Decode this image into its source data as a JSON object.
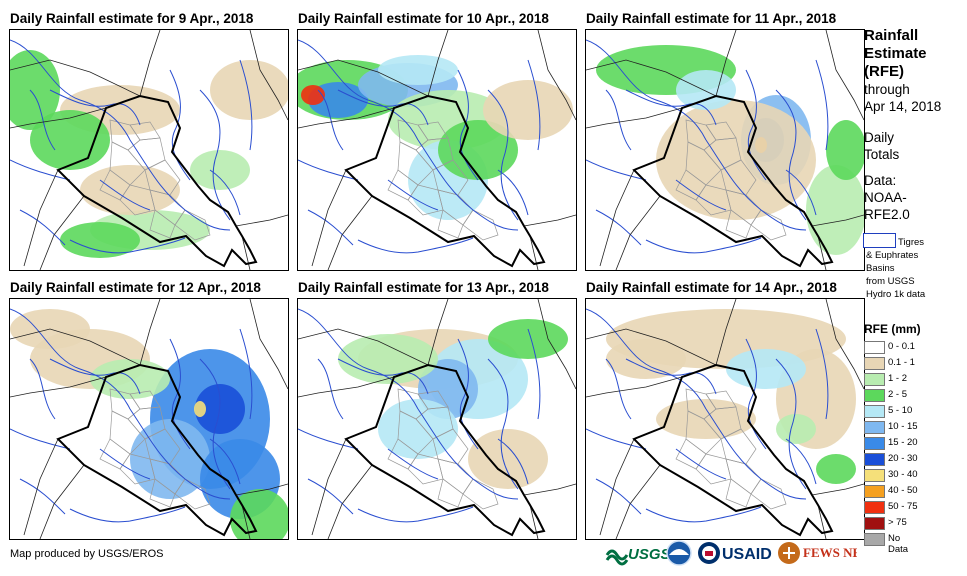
{
  "panels": [
    {
      "title": "Daily Rainfall estimate for 9 Apr., 2018"
    },
    {
      "title": "Daily Rainfall estimate for 10 Apr., 2018"
    },
    {
      "title": "Daily Rainfall estimate for 11 Apr., 2018"
    },
    {
      "title": "Daily Rainfall estimate for 12 Apr., 2018"
    },
    {
      "title": "Daily Rainfall estimate for 13 Apr., 2018"
    },
    {
      "title": "Daily Rainfall estimate for 14 Apr., 2018"
    }
  ],
  "side": {
    "line1": "Rainfall",
    "line2": "Estimate",
    "line3": "(RFE)",
    "line4": "through",
    "line5": "Apr 14, 2018",
    "line6": "Daily",
    "line7": "Totals",
    "line8": "Data:",
    "line9": "NOAA-",
    "line10": "RFE2.0"
  },
  "basins": {
    "line1": "Tigres",
    "line2": "& Euphrates",
    "line3": "Basins",
    "line4": "from USGS",
    "line5": "Hydro 1k data"
  },
  "legend": {
    "title": "RFE (mm)",
    "items": [
      {
        "label": "0 - 0.1",
        "color": "#ffffff"
      },
      {
        "label": "0.1 - 1",
        "color": "#e8d6b5"
      },
      {
        "label": "1 - 2",
        "color": "#b8ecb0"
      },
      {
        "label": "2 - 5",
        "color": "#5cd85c"
      },
      {
        "label": "5 - 10",
        "color": "#b5e8f5"
      },
      {
        "label": "10 - 15",
        "color": "#7fb8f0"
      },
      {
        "label": "15 - 20",
        "color": "#3a8ae8"
      },
      {
        "label": "20 - 30",
        "color": "#1a4fd8"
      },
      {
        "label": "30 - 40",
        "color": "#f5e07a"
      },
      {
        "label": "40 - 50",
        "color": "#f5a020"
      },
      {
        "label": "50 - 75",
        "color": "#f03010"
      },
      {
        "label": "> 75",
        "color": "#a01010"
      },
      {
        "label": "No Data",
        "color": "#a8a8a8"
      }
    ]
  },
  "footer": "Map produced by USGS/EROS",
  "logos": {
    "usgs": "USGS",
    "usaid": "USAID",
    "fews": "FEWS NET"
  }
}
